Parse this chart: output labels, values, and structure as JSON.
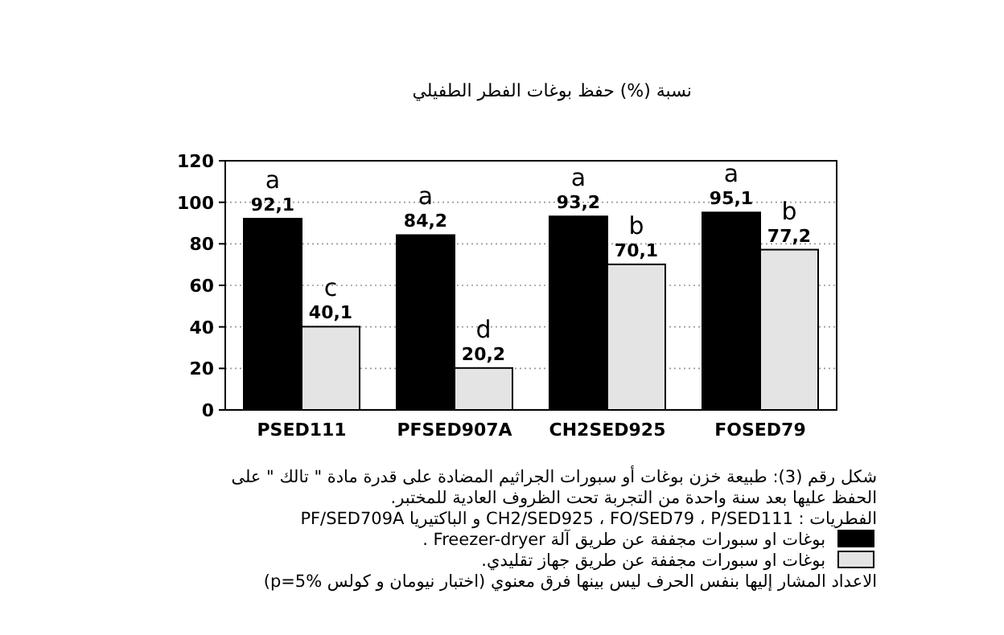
{
  "chart_data": {
    "type": "bar",
    "ylabel": "نسبة (%) حفظ بوغات الفطر الطفيلي",
    "categories": [
      "PSED111",
      "PFSED907A",
      "CH2SED925",
      "FOSED79"
    ],
    "series": [
      {
        "name": "بوغات او سبورات مجففة عن طريق آلة Freezer-dryer .",
        "color": "#000000",
        "values": [
          92.1,
          84.2,
          93.2,
          95.1
        ],
        "value_labels": [
          "92,1",
          "84,2",
          "93,2",
          "95,1"
        ]
      },
      {
        "name": "بوغات او سبورات مجففة عن طريق جهاز تقليدي.",
        "color": "#e4e4e4",
        "values": [
          40.1,
          20.2,
          70.1,
          77.2
        ],
        "value_labels": [
          "40,1",
          "20,2",
          "70,1",
          "77,2"
        ]
      }
    ],
    "ylim": [
      0,
      120
    ],
    "yticks": [
      0,
      20,
      40,
      60,
      80,
      100,
      120
    ],
    "grid": "y",
    "legend": "bottom",
    "annotations": [
      {
        "text": "a",
        "x": "PSED111",
        "y": 92.1
      },
      {
        "text": "c",
        "x": "PSED111",
        "y": 40.1
      },
      {
        "text": "a",
        "x": "PFSED907A",
        "y": 84.2
      },
      {
        "text": "d",
        "x": "PFSED907A",
        "y": 20.2
      },
      {
        "text": "a",
        "x": "CH2SED925",
        "y": 93.2
      },
      {
        "text": "b",
        "x": "CH2SED925",
        "y": 70.1
      },
      {
        "text": "a",
        "x": "FOSED79",
        "y": 95.1
      },
      {
        "text": "b",
        "x": "FOSED79",
        "y": 77.2
      },
      "شكل رقم (3): طبيعة خزن بوغات أو سبورات الجراثيم المضادة على قدرة مادة \" تالك \" على الحفظ عليها بعد سنة واحدة من التجربة تحت الظروف العادية للمختبر.",
      "الفطريات : CH2/SED925 ، FO/SED79 ، P/SED111 و الباكتيريا PF/SED709A",
      "الاعداد المشار إليها بنفس الحرف ليس بينها فرق معنوي (اختبار نيومان و كولس p=5%)"
    ]
  }
}
